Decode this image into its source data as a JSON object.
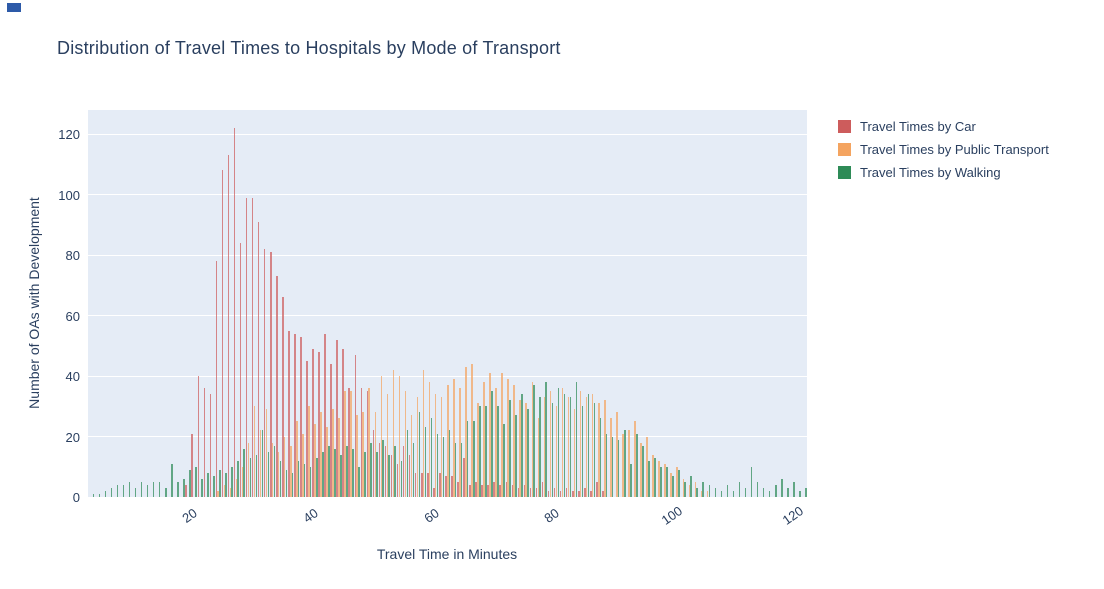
{
  "ui": {
    "corner_marker_color": "#2d5aa8",
    "text_color": "#2a3f5f",
    "background_color": "#ffffff"
  },
  "chart_data": {
    "type": "bar",
    "mode": "grouped-histogram",
    "title": "Distribution of Travel Times to Hospitals by Mode of Transport",
    "xlabel": "Travel Time in Minutes",
    "ylabel": "Number of OAs with Development",
    "legend_position": "right-top",
    "grid": true,
    "plot_bg": "#e5ecf6",
    "grid_color": "#ffffff",
    "text_color": "#2a3f5f",
    "bar_opacity": 0.72,
    "x_ticks": [
      20,
      40,
      60,
      80,
      100,
      120
    ],
    "y_ticks": [
      0,
      20,
      40,
      60,
      80,
      100,
      120
    ],
    "xlim": [
      2.95,
      122
    ],
    "ylim": [
      0,
      128
    ],
    "bin_start": 3,
    "bin_width": 1,
    "series": [
      {
        "name": "Travel Times by Car",
        "color": "#CD5C5C",
        "values": [
          0,
          0,
          0,
          0,
          0,
          0,
          0,
          0,
          0,
          0,
          0,
          0,
          0,
          0,
          0,
          0,
          4,
          21,
          40,
          36,
          34,
          78,
          108,
          113,
          122,
          84,
          99,
          99,
          91,
          82,
          81,
          73,
          66,
          55,
          54,
          53,
          45,
          49,
          48,
          54,
          44,
          52,
          49,
          36,
          47,
          36,
          35,
          22,
          18,
          17,
          14,
          11,
          17,
          14,
          8,
          8,
          8,
          3,
          8,
          7,
          7,
          5,
          13,
          4,
          5,
          4,
          4,
          5,
          4,
          5,
          4,
          3,
          4,
          3,
          3,
          5,
          2,
          3,
          2,
          3,
          2,
          2,
          3,
          2,
          5,
          2,
          0,
          0,
          0,
          0,
          0,
          0,
          0,
          0,
          0,
          0,
          0,
          0,
          0,
          0,
          0,
          0,
          0,
          0,
          0,
          0,
          0,
          0,
          0,
          0,
          0,
          0,
          0,
          0,
          0,
          0,
          0,
          0,
          0
        ]
      },
      {
        "name": "Travel Times by Public Transport",
        "color": "#F4A460",
        "values": [
          0,
          0,
          0,
          0,
          0,
          0,
          0,
          0,
          0,
          0,
          0,
          0,
          0,
          0,
          0,
          0,
          0,
          0,
          0,
          0,
          0,
          2,
          4,
          3,
          6,
          10,
          18,
          30,
          22,
          29,
          18,
          15,
          20,
          17,
          25,
          21,
          30,
          24,
          28,
          23,
          29,
          26,
          35,
          35,
          27,
          28,
          36,
          28,
          40,
          34,
          42,
          40,
          35,
          27,
          33,
          42,
          38,
          34,
          33,
          37,
          39,
          36,
          43,
          44,
          31,
          38,
          41,
          36,
          41,
          39,
          37,
          32,
          31,
          38,
          26,
          33,
          35,
          30,
          36,
          33,
          29,
          35,
          33,
          34,
          31,
          32,
          26,
          28,
          21,
          22,
          25,
          18,
          20,
          14,
          12,
          11,
          8,
          10,
          6,
          4,
          5,
          2,
          2,
          0,
          0,
          0,
          0,
          0,
          0,
          0,
          0,
          0,
          0,
          0,
          0,
          0,
          0,
          0,
          0
        ]
      },
      {
        "name": "Travel Times by Walking",
        "color": "#2E8B57",
        "values": [
          1,
          1,
          2,
          3,
          4,
          4,
          5,
          3,
          5,
          4,
          5,
          5,
          3,
          11,
          5,
          6,
          9,
          10,
          6,
          8,
          7,
          9,
          8,
          10,
          12,
          16,
          13,
          14,
          22,
          15,
          17,
          12,
          9,
          8,
          12,
          11,
          10,
          13,
          15,
          17,
          16,
          14,
          17,
          16,
          10,
          15,
          18,
          15,
          19,
          14,
          17,
          12,
          22,
          18,
          28,
          23,
          26,
          21,
          20,
          22,
          18,
          18,
          25,
          25,
          30,
          30,
          35,
          30,
          24,
          32,
          27,
          34,
          29,
          37,
          33,
          38,
          31,
          36,
          34,
          33,
          38,
          30,
          34,
          31,
          26,
          21,
          20,
          19,
          22,
          11,
          21,
          17,
          12,
          13,
          10,
          10,
          7,
          9,
          5,
          7,
          3,
          5,
          4,
          3,
          2,
          4,
          2,
          5,
          3,
          10,
          5,
          3,
          2,
          4,
          6,
          3,
          5,
          2,
          3
        ]
      }
    ]
  }
}
